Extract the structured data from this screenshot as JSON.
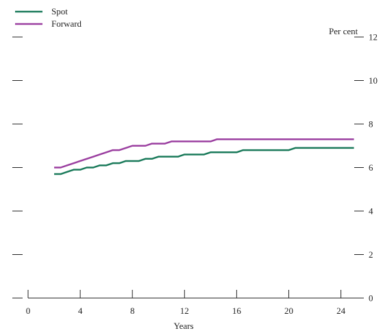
{
  "chart_data": {
    "type": "line",
    "xlabel": "Years",
    "ylabel": "Per cent",
    "xlim": [
      0,
      25
    ],
    "ylim": [
      0,
      12
    ],
    "x_ticks": [
      "0",
      "4",
      "8",
      "12",
      "16",
      "20",
      "24"
    ],
    "y_ticks": [
      "0",
      "2",
      "4",
      "6",
      "8",
      "10",
      "12"
    ],
    "legend_position": "top-left",
    "grid": false,
    "series": [
      {
        "name": "Spot",
        "color": "#1a7a5a",
        "points": [
          [
            2,
            5.7
          ],
          [
            2.5,
            5.7
          ],
          [
            3,
            5.8
          ],
          [
            3.5,
            5.9
          ],
          [
            4,
            5.9
          ],
          [
            4.5,
            6.0
          ],
          [
            5,
            6.0
          ],
          [
            5.5,
            6.1
          ],
          [
            6,
            6.1
          ],
          [
            6.5,
            6.2
          ],
          [
            7,
            6.2
          ],
          [
            7.5,
            6.3
          ],
          [
            8,
            6.3
          ],
          [
            8.5,
            6.3
          ],
          [
            9,
            6.4
          ],
          [
            9.5,
            6.4
          ],
          [
            10,
            6.5
          ],
          [
            11,
            6.5
          ],
          [
            11.5,
            6.5
          ],
          [
            12,
            6.6
          ],
          [
            13,
            6.6
          ],
          [
            13.5,
            6.6
          ],
          [
            14,
            6.7
          ],
          [
            15,
            6.7
          ],
          [
            16,
            6.7
          ],
          [
            16.5,
            6.8
          ],
          [
            17,
            6.8
          ],
          [
            20,
            6.8
          ],
          [
            20.5,
            6.9
          ],
          [
            21,
            6.9
          ],
          [
            25,
            6.9
          ]
        ]
      },
      {
        "name": "Forward",
        "color": "#9b3fa0",
        "points": [
          [
            2,
            6.0
          ],
          [
            2.5,
            6.0
          ],
          [
            3,
            6.1
          ],
          [
            3.5,
            6.2
          ],
          [
            4,
            6.3
          ],
          [
            4.5,
            6.4
          ],
          [
            5,
            6.5
          ],
          [
            5.5,
            6.6
          ],
          [
            6,
            6.7
          ],
          [
            6.5,
            6.8
          ],
          [
            7,
            6.8
          ],
          [
            7.5,
            6.9
          ],
          [
            8,
            7.0
          ],
          [
            9,
            7.0
          ],
          [
            9.5,
            7.1
          ],
          [
            10.5,
            7.1
          ],
          [
            11,
            7.2
          ],
          [
            14,
            7.2
          ],
          [
            14.5,
            7.3
          ],
          [
            25,
            7.3
          ]
        ]
      }
    ]
  }
}
